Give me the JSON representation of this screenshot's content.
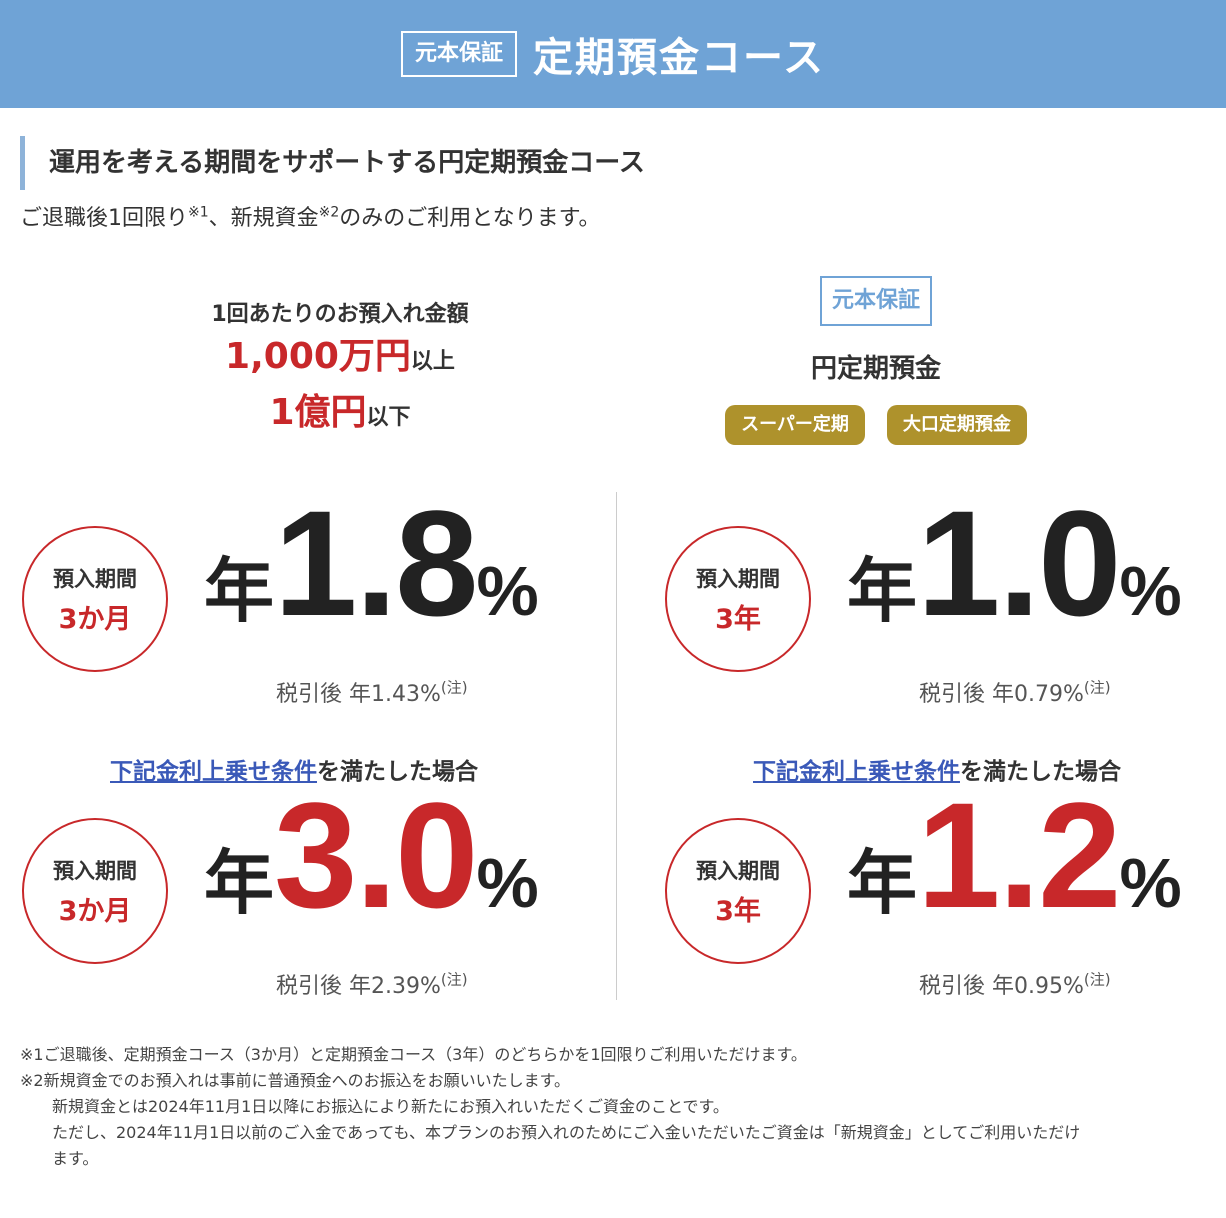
{
  "header": {
    "badge": "元本保証",
    "title": "定期預金コース"
  },
  "subheading": "運用を考える期間をサポートする円定期預金コース",
  "intro": {
    "text_a": "ご退職後1回限り",
    "sup_a": "※1",
    "text_b": "、新規資金",
    "sup_b": "※2",
    "text_c": "のみのご利用となります。"
  },
  "amount": {
    "label": "1回あたりのお預入れ金額",
    "min_value": "1,000万円",
    "min_suffix": "以上",
    "max_value": "1億円",
    "max_suffix": "以下"
  },
  "product": {
    "badge": "元本保証",
    "name": "円定期預金",
    "tags": [
      "スーパー定期",
      "大口定期預金"
    ]
  },
  "rates": [
    {
      "term_label": "預入期間",
      "term": "3か月",
      "prefix": "年",
      "value": "1.8",
      "unit": "%",
      "after_tax": "税引後 年1.43%",
      "note": "(注)",
      "highlight": false
    },
    {
      "term_label": "預入期間",
      "term": "3年",
      "prefix": "年",
      "value": "1.0",
      "unit": "%",
      "after_tax": "税引後 年0.79%",
      "note": "(注)",
      "highlight": false
    },
    {
      "term_label": "預入期間",
      "term": "3か月",
      "prefix": "年",
      "value": "3.0",
      "unit": "%",
      "after_tax": "税引後 年2.39%",
      "note": "(注)",
      "highlight": true
    },
    {
      "term_label": "預入期間",
      "term": "3年",
      "prefix": "年",
      "value": "1.2",
      "unit": "%",
      "after_tax": "税引後 年0.95%",
      "note": "(注)",
      "highlight": true
    }
  ],
  "condition": {
    "link": "下記金利上乗せ条件",
    "text": "を満たした場合"
  },
  "notes": [
    "※1ご退職後、定期預金コース（3か月）と定期預金コース（3年）のどちらかを1回限りご利用いただけます。",
    "※2新規資金でのお預入れは事前に普通預金へのお振込をお願いいたします。",
    "新規資金とは2024年11月1日以降にお振込により新たにお預入れいただくご資金のことです。",
    "ただし、2024年11月1日以前のご入金であっても、本プランのお預入れのためにご入金いただいたご資金は「新規資金」としてご利用いただけ",
    "ます。"
  ],
  "colors": {
    "header_bg": "#6fa3d6",
    "accent_red": "#c8282a",
    "tag_gold": "#ae922c",
    "link_blue": "#3a59b8"
  }
}
